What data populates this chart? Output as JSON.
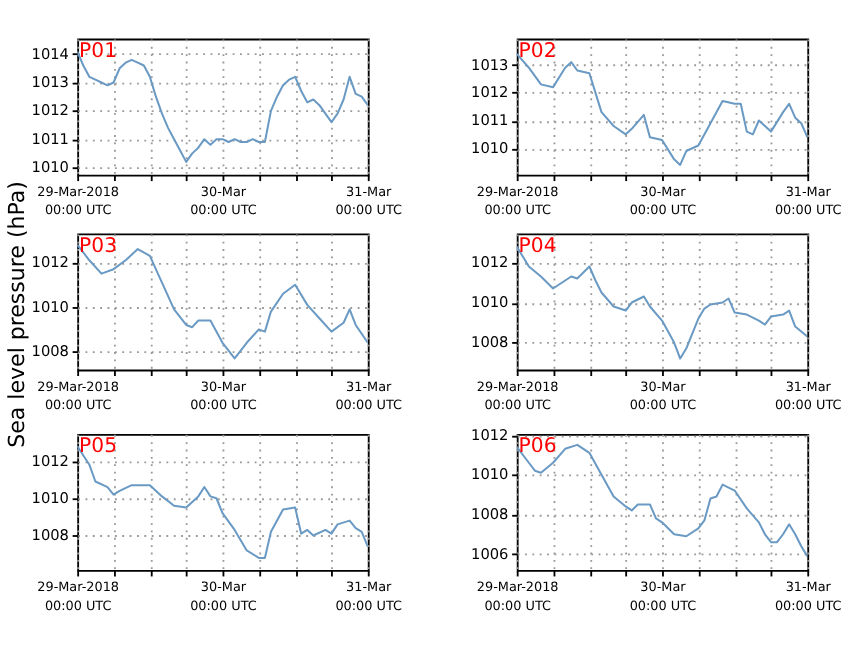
{
  "chart_data": [
    {
      "type": "line",
      "title": "P01",
      "xlim": [
        "2018-03-29T00:00",
        "2018-03-31T00:00"
      ],
      "xticks": [
        {
          "value": "2018-03-29T00:00",
          "label": "29-Mar-2018\n00:00 UTC"
        },
        {
          "value": "2018-03-29T06:00",
          "label": null
        },
        {
          "value": "2018-03-29T12:00",
          "label": null
        },
        {
          "value": "2018-03-29T18:00",
          "label": null
        },
        {
          "value": "2018-03-30T00:00",
          "label": "30-Mar\n00:00 UTC"
        },
        {
          "value": "2018-03-30T06:00",
          "label": null
        },
        {
          "value": "2018-03-30T12:00",
          "label": null
        },
        {
          "value": "2018-03-30T18:00",
          "label": null
        },
        {
          "value": "2018-03-31T00:00",
          "label": "31-Mar\n00:00 UTC"
        }
      ],
      "ylim": [
        1009.75,
        1014.55
      ],
      "yticks": [
        1010,
        1011,
        1012,
        1013,
        1014
      ],
      "grid": true,
      "series": [
        {
          "color": "#6a9ac4",
          "x": [
            "2018-03-29T00:00",
            "2018-03-29T01:00",
            "2018-03-29T02:00",
            "2018-03-29T03:00",
            "2018-03-29T04:00",
            "2018-03-29T05:00",
            "2018-03-29T06:00",
            "2018-03-29T07:00",
            "2018-03-29T08:00",
            "2018-03-29T09:00",
            "2018-03-29T10:00",
            "2018-03-29T11:00",
            "2018-03-29T12:00",
            "2018-03-29T13:00",
            "2018-03-29T14:00",
            "2018-03-29T15:00",
            "2018-03-29T16:00",
            "2018-03-29T17:00",
            "2018-03-29T18:00",
            "2018-03-29T19:00",
            "2018-03-29T20:00",
            "2018-03-29T21:00",
            "2018-03-29T22:00",
            "2018-03-29T23:00",
            "2018-03-30T00:00",
            "2018-03-30T01:00",
            "2018-03-30T02:00",
            "2018-03-30T03:00",
            "2018-03-30T04:00",
            "2018-03-30T05:00",
            "2018-03-30T06:00",
            "2018-03-30T07:00",
            "2018-03-30T08:00",
            "2018-03-30T09:00",
            "2018-03-30T10:00",
            "2018-03-30T11:00",
            "2018-03-30T12:00",
            "2018-03-30T13:00",
            "2018-03-30T14:00",
            "2018-03-30T15:00",
            "2018-03-30T16:00",
            "2018-03-30T17:00",
            "2018-03-30T18:00",
            "2018-03-30T19:00",
            "2018-03-30T20:00",
            "2018-03-30T21:00",
            "2018-03-30T22:00",
            "2018-03-30T23:00",
            "2018-03-31T00:00"
          ],
          "values": [
            1014.1,
            1013.6,
            1013.2,
            1013.1,
            1013.0,
            1012.9,
            1013.0,
            1013.5,
            1013.7,
            1013.8,
            1013.7,
            1013.6,
            1013.2,
            1012.5,
            1011.9,
            1011.4,
            1011.0,
            1010.6,
            1010.2,
            1010.5,
            1010.7,
            1011.0,
            1010.8,
            1011.0,
            1011.0,
            1010.9,
            1011.0,
            1010.9,
            1010.9,
            1011.0,
            1010.9,
            1010.9,
            1012.0,
            1012.5,
            1012.9,
            1013.1,
            1013.2,
            1012.7,
            1012.3,
            1012.4,
            1012.2,
            1011.9,
            1011.6,
            1011.9,
            1012.4,
            1013.2,
            1012.6,
            1012.5,
            1012.2
          ]
        }
      ]
    },
    {
      "type": "line",
      "title": "P02",
      "xlim": [
        "2018-03-29T00:00",
        "2018-03-31T00:00"
      ],
      "xticks": [
        {
          "value": "2018-03-29T00:00",
          "label": "29-Mar-2018\n00:00 UTC"
        },
        {
          "value": "2018-03-29T06:00",
          "label": null
        },
        {
          "value": "2018-03-29T12:00",
          "label": null
        },
        {
          "value": "2018-03-29T18:00",
          "label": null
        },
        {
          "value": "2018-03-30T00:00",
          "label": "30-Mar\n00:00 UTC"
        },
        {
          "value": "2018-03-30T06:00",
          "label": null
        },
        {
          "value": "2018-03-30T12:00",
          "label": null
        },
        {
          "value": "2018-03-30T18:00",
          "label": null
        },
        {
          "value": "2018-03-31T00:00",
          "label": "31-Mar\n00:00 UTC"
        }
      ],
      "ylim": [
        1009.05,
        1013.95
      ],
      "yticks": [
        1010,
        1011,
        1012,
        1013
      ],
      "grid": true,
      "series": [
        {
          "color": "#6a9ac4",
          "x": [
            "2018-03-29T00:00",
            "2018-03-29T02:00",
            "2018-03-29T04:00",
            "2018-03-29T06:00",
            "2018-03-29T08:00",
            "2018-03-29T09:00",
            "2018-03-29T10:00",
            "2018-03-29T12:00",
            "2018-03-29T14:00",
            "2018-03-29T16:00",
            "2018-03-29T18:00",
            "2018-03-29T19:00",
            "2018-03-29T21:00",
            "2018-03-29T22:00",
            "2018-03-30T00:00",
            "2018-03-30T02:00",
            "2018-03-30T03:00",
            "2018-03-30T04:00",
            "2018-03-30T06:00",
            "2018-03-30T08:00",
            "2018-03-30T10:00",
            "2018-03-30T12:00",
            "2018-03-30T13:00",
            "2018-03-30T14:00",
            "2018-03-30T15:00",
            "2018-03-30T16:00",
            "2018-03-30T18:00",
            "2018-03-30T20:00",
            "2018-03-30T21:00",
            "2018-03-30T22:00",
            "2018-03-30T23:00",
            "2018-03-31T00:00"
          ],
          "values": [
            1013.4,
            1012.9,
            1012.3,
            1012.2,
            1012.9,
            1013.1,
            1012.8,
            1012.7,
            1011.3,
            1010.8,
            1010.5,
            1010.7,
            1011.2,
            1010.4,
            1010.3,
            1009.6,
            1009.4,
            1009.9,
            1010.1,
            1010.9,
            1011.7,
            1011.6,
            1011.6,
            1010.6,
            1010.5,
            1011.0,
            1010.6,
            1011.3,
            1011.6,
            1011.1,
            1010.9,
            1010.4
          ]
        }
      ]
    },
    {
      "type": "line",
      "title": "P03",
      "ylabel": "Sea level pressure (hPa)",
      "xlim": [
        "2018-03-29T00:00",
        "2018-03-31T00:00"
      ],
      "xticks": [
        {
          "value": "2018-03-29T00:00",
          "label": "29-Mar-2018\n00:00 UTC"
        },
        {
          "value": "2018-03-29T06:00",
          "label": null
        },
        {
          "value": "2018-03-29T12:00",
          "label": null
        },
        {
          "value": "2018-03-29T18:00",
          "label": null
        },
        {
          "value": "2018-03-30T00:00",
          "label": "30-Mar\n00:00 UTC"
        },
        {
          "value": "2018-03-30T06:00",
          "label": null
        },
        {
          "value": "2018-03-30T12:00",
          "label": null
        },
        {
          "value": "2018-03-30T18:00",
          "label": null
        },
        {
          "value": "2018-03-31T00:00",
          "label": "31-Mar\n00:00 UTC"
        }
      ],
      "ylim": [
        1007.2,
        1013.3
      ],
      "yticks": [
        1008,
        1010,
        1012
      ],
      "grid": true,
      "series": [
        {
          "color": "#6a9ac4",
          "x": [
            "2018-03-29T00:00",
            "2018-03-29T02:00",
            "2018-03-29T04:00",
            "2018-03-29T06:00",
            "2018-03-29T08:00",
            "2018-03-29T10:00",
            "2018-03-29T12:00",
            "2018-03-29T14:00",
            "2018-03-29T16:00",
            "2018-03-29T18:00",
            "2018-03-29T19:00",
            "2018-03-29T20:00",
            "2018-03-29T22:00",
            "2018-03-30T00:00",
            "2018-03-30T02:00",
            "2018-03-30T04:00",
            "2018-03-30T06:00",
            "2018-03-30T07:00",
            "2018-03-30T08:00",
            "2018-03-30T10:00",
            "2018-03-30T12:00",
            "2018-03-30T14:00",
            "2018-03-30T16:00",
            "2018-03-30T18:00",
            "2018-03-30T20:00",
            "2018-03-30T21:00",
            "2018-03-30T22:00",
            "2018-03-31T00:00"
          ],
          "values": [
            1012.8,
            1012.1,
            1011.5,
            1011.7,
            1012.1,
            1012.6,
            1012.3,
            1011.1,
            1009.9,
            1009.2,
            1009.1,
            1009.4,
            1009.4,
            1008.4,
            1007.7,
            1008.4,
            1009.0,
            1008.9,
            1009.8,
            1010.6,
            1011.0,
            1010.1,
            1009.5,
            1008.9,
            1009.3,
            1009.9,
            1009.2,
            1008.4
          ]
        }
      ]
    },
    {
      "type": "line",
      "title": "P04",
      "xlim": [
        "2018-03-29T00:00",
        "2018-03-31T00:00"
      ],
      "xticks": [
        {
          "value": "2018-03-29T00:00",
          "label": "29-Mar-2018\n00:00 UTC"
        },
        {
          "value": "2018-03-29T06:00",
          "label": null
        },
        {
          "value": "2018-03-29T12:00",
          "label": null
        },
        {
          "value": "2018-03-29T18:00",
          "label": null
        },
        {
          "value": "2018-03-30T00:00",
          "label": "30-Mar\n00:00 UTC"
        },
        {
          "value": "2018-03-30T06:00",
          "label": null
        },
        {
          "value": "2018-03-30T12:00",
          "label": null
        },
        {
          "value": "2018-03-30T18:00",
          "label": null
        },
        {
          "value": "2018-03-31T00:00",
          "label": "31-Mar\n00:00 UTC"
        }
      ],
      "ylim": [
        1006.65,
        1013.45
      ],
      "yticks": [
        1008,
        1010,
        1012
      ],
      "grid": true,
      "series": [
        {
          "color": "#6a9ac4",
          "x": [
            "2018-03-29T00:00",
            "2018-03-29T02:00",
            "2018-03-29T04:00",
            "2018-03-29T06:00",
            "2018-03-29T08:00",
            "2018-03-29T09:00",
            "2018-03-29T10:00",
            "2018-03-29T12:00",
            "2018-03-29T13:00",
            "2018-03-29T14:00",
            "2018-03-29T16:00",
            "2018-03-29T18:00",
            "2018-03-29T19:00",
            "2018-03-29T21:00",
            "2018-03-29T22:00",
            "2018-03-30T00:00",
            "2018-03-30T02:00",
            "2018-03-30T03:00",
            "2018-03-30T04:00",
            "2018-03-30T06:00",
            "2018-03-30T07:00",
            "2018-03-30T08:00",
            "2018-03-30T10:00",
            "2018-03-30T11:00",
            "2018-03-30T12:00",
            "2018-03-30T14:00",
            "2018-03-30T16:00",
            "2018-03-30T17:00",
            "2018-03-30T18:00",
            "2018-03-30T20:00",
            "2018-03-30T21:00",
            "2018-03-30T22:00",
            "2018-03-31T00:00"
          ],
          "values": [
            1012.8,
            1011.8,
            1011.3,
            1010.7,
            1011.1,
            1011.3,
            1011.2,
            1011.8,
            1011.1,
            1010.5,
            1009.8,
            1009.6,
            1010.0,
            1010.3,
            1009.8,
            1009.1,
            1008.0,
            1007.2,
            1007.7,
            1009.2,
            1009.7,
            1009.9,
            1010.0,
            1010.2,
            1009.5,
            1009.4,
            1009.1,
            1008.9,
            1009.3,
            1009.4,
            1009.6,
            1008.8,
            1008.3
          ]
        }
      ]
    },
    {
      "type": "line",
      "title": "P05",
      "xlim": [
        "2018-03-29T00:00",
        "2018-03-31T00:00"
      ],
      "xticks": [
        {
          "value": "2018-03-29T00:00",
          "label": "29-Mar-2018\n00:00 UTC"
        },
        {
          "value": "2018-03-29T06:00",
          "label": null
        },
        {
          "value": "2018-03-29T12:00",
          "label": null
        },
        {
          "value": "2018-03-29T18:00",
          "label": null
        },
        {
          "value": "2018-03-30T00:00",
          "label": "30-Mar\n00:00 UTC"
        },
        {
          "value": "2018-03-30T06:00",
          "label": null
        },
        {
          "value": "2018-03-30T12:00",
          "label": null
        },
        {
          "value": "2018-03-30T18:00",
          "label": null
        },
        {
          "value": "2018-03-31T00:00",
          "label": "31-Mar\n00:00 UTC"
        }
      ],
      "ylim": [
        1006.15,
        1013.45
      ],
      "yticks": [
        1008,
        1010,
        1012
      ],
      "grid": true,
      "series": [
        {
          "color": "#6a9ac4",
          "x": [
            "2018-03-29T00:00",
            "2018-03-29T02:00",
            "2018-03-29T03:00",
            "2018-03-29T05:00",
            "2018-03-29T06:00",
            "2018-03-29T07:00",
            "2018-03-29T09:00",
            "2018-03-29T10:00",
            "2018-03-29T12:00",
            "2018-03-29T14:00",
            "2018-03-29T16:00",
            "2018-03-29T18:00",
            "2018-03-29T20:00",
            "2018-03-29T21:00",
            "2018-03-29T22:00",
            "2018-03-29T23:00",
            "2018-03-30T00:00",
            "2018-03-30T02:00",
            "2018-03-30T04:00",
            "2018-03-30T06:00",
            "2018-03-30T07:00",
            "2018-03-30T08:00",
            "2018-03-30T10:00",
            "2018-03-30T12:00",
            "2018-03-30T13:00",
            "2018-03-30T14:00",
            "2018-03-30T15:00",
            "2018-03-30T17:00",
            "2018-03-30T18:00",
            "2018-03-30T19:00",
            "2018-03-30T21:00",
            "2018-03-30T22:00",
            "2018-03-30T23:00",
            "2018-03-31T00:00"
          ],
          "values": [
            1012.8,
            1011.8,
            1010.9,
            1010.6,
            1010.2,
            1010.4,
            1010.7,
            1010.7,
            1010.7,
            1010.1,
            1009.6,
            1009.5,
            1010.1,
            1010.6,
            1010.1,
            1010.0,
            1009.2,
            1008.3,
            1007.2,
            1006.8,
            1006.8,
            1008.2,
            1009.4,
            1009.5,
            1008.1,
            1008.3,
            1008.0,
            1008.3,
            1008.1,
            1008.6,
            1008.8,
            1008.4,
            1008.2,
            1007.4
          ]
        }
      ]
    },
    {
      "type": "line",
      "title": "P06",
      "xlim": [
        "2018-03-29T00:00",
        "2018-03-31T00:00"
      ],
      "xticks": [
        {
          "value": "2018-03-29T00:00",
          "label": "29-Mar-2018\n00:00 UTC"
        },
        {
          "value": "2018-03-29T06:00",
          "label": null
        },
        {
          "value": "2018-03-29T12:00",
          "label": null
        },
        {
          "value": "2018-03-29T18:00",
          "label": null
        },
        {
          "value": "2018-03-30T00:00",
          "label": "30-Mar\n00:00 UTC"
        },
        {
          "value": "2018-03-30T06:00",
          "label": null
        },
        {
          "value": "2018-03-30T12:00",
          "label": null
        },
        {
          "value": "2018-03-30T18:00",
          "label": null
        },
        {
          "value": "2018-03-31T00:00",
          "label": "31-Mar\n00:00 UTC"
        }
      ],
      "ylim": [
        1005.2,
        1012.05
      ],
      "yticks": [
        1006,
        1008,
        1010,
        1012
      ],
      "grid": true,
      "series": [
        {
          "color": "#6a9ac4",
          "x": [
            "2018-03-29T00:00",
            "2018-03-29T02:00",
            "2018-03-29T03:00",
            "2018-03-29T04:00",
            "2018-03-29T06:00",
            "2018-03-29T08:00",
            "2018-03-29T10:00",
            "2018-03-29T11:00",
            "2018-03-29T12:00",
            "2018-03-29T14:00",
            "2018-03-29T16:00",
            "2018-03-29T18:00",
            "2018-03-29T19:00",
            "2018-03-29T20:00",
            "2018-03-29T22:00",
            "2018-03-29T23:00",
            "2018-03-30T00:00",
            "2018-03-30T02:00",
            "2018-03-30T04:00",
            "2018-03-30T06:00",
            "2018-03-30T07:00",
            "2018-03-30T08:00",
            "2018-03-30T09:00",
            "2018-03-30T10:00",
            "2018-03-30T12:00",
            "2018-03-30T14:00",
            "2018-03-30T16:00",
            "2018-03-30T17:00",
            "2018-03-30T18:00",
            "2018-03-30T19:00",
            "2018-03-30T20:00",
            "2018-03-30T21:00",
            "2018-03-30T22:00",
            "2018-03-30T23:00",
            "2018-03-31T00:00"
          ],
          "values": [
            1011.4,
            1010.6,
            1010.2,
            1010.1,
            1010.6,
            1011.3,
            1011.5,
            1011.3,
            1011.1,
            1010.0,
            1008.9,
            1008.4,
            1008.2,
            1008.5,
            1008.5,
            1007.8,
            1007.6,
            1007.0,
            1006.9,
            1007.3,
            1007.7,
            1008.8,
            1008.9,
            1009.5,
            1009.2,
            1008.3,
            1007.6,
            1007.0,
            1006.6,
            1006.6,
            1007.0,
            1007.5,
            1007.0,
            1006.4,
            1005.9
          ]
        }
      ]
    }
  ]
}
